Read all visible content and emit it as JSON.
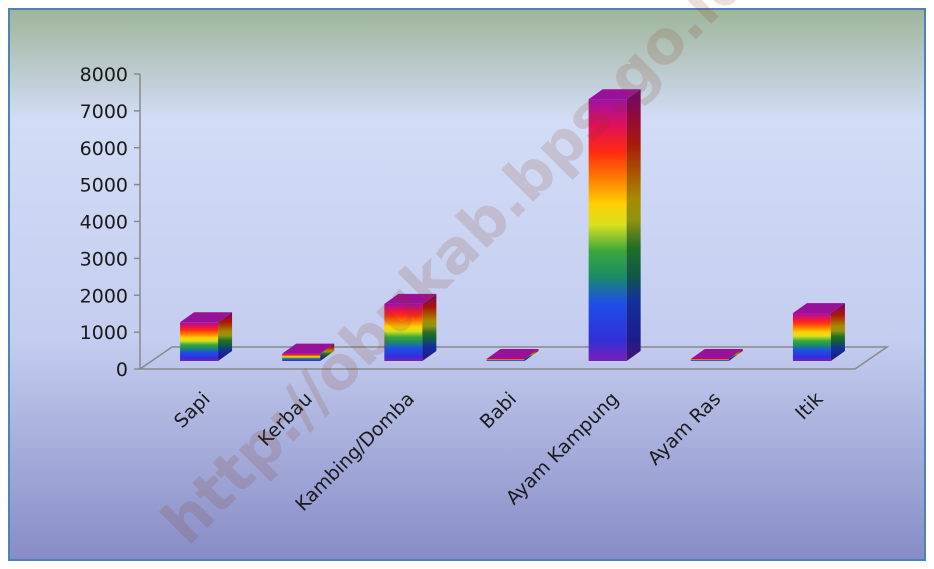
{
  "watermark": "http://obukab.bps.go.id",
  "chart_data": {
    "type": "bar",
    "style": "3d-cylinder-rainbow",
    "categories": [
      "Sapi",
      "Kerbau",
      "Kambing/Domba",
      "Babi",
      "Ayam Kampung",
      "Ayam Ras",
      "Itik"
    ],
    "values": [
      1050,
      200,
      1550,
      0,
      7100,
      0,
      1300
    ],
    "ylim": [
      0,
      8000
    ],
    "yticks": [
      "0",
      "1000",
      "2000",
      "3000",
      "4000",
      "5000",
      "6000",
      "7000",
      "8000"
    ],
    "title": "",
    "xlabel": "",
    "ylabel": "",
    "legend": "none",
    "grid": false,
    "colors": {
      "background_top": "#9fb59a",
      "background_mid": "#d4dcf5",
      "background_bottom": "#8c8fc8",
      "frame_border": "#4f81bd",
      "axis_line": "#8a8a8a",
      "bar_top": "#9a1199"
    }
  }
}
